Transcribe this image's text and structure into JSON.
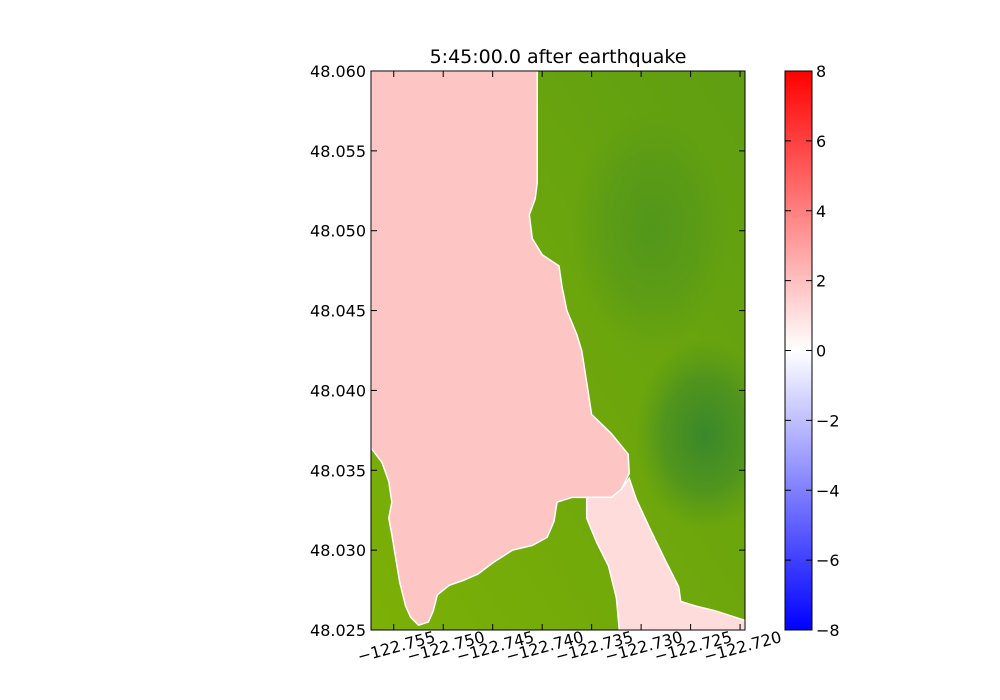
{
  "chart_data": {
    "type": "heatmap",
    "title": "5:45:00.0 after earthquake",
    "xlabel": "",
    "ylabel": "",
    "xlim": [
      -122.7573,
      -122.7195
    ],
    "ylim": [
      48.025,
      48.06
    ],
    "x_ticks": [
      -122.755,
      -122.75,
      -122.745,
      -122.74,
      -122.735,
      -122.73,
      -122.725,
      -122.72
    ],
    "x_tick_labels": [
      "−122.755",
      "−122.750",
      "−122.745",
      "−122.740",
      "−122.735",
      "−122.730",
      "−122.725",
      "−122.720"
    ],
    "y_ticks": [
      48.025,
      48.03,
      48.035,
      48.04,
      48.045,
      48.05,
      48.055,
      48.06
    ],
    "y_tick_labels": [
      "48.025",
      "48.030",
      "48.035",
      "48.040",
      "48.045",
      "48.050",
      "48.055",
      "48.060"
    ],
    "colorbar": {
      "range": [
        -8,
        8
      ],
      "ticks": [
        8,
        6,
        4,
        2,
        0,
        -2,
        -4,
        -6,
        -8
      ],
      "tick_labels": [
        "8",
        "6",
        "4",
        "2",
        "0",
        "−2",
        "−4",
        "−6",
        "−8"
      ],
      "colors": {
        "low": "#0000ff",
        "mid": "#ffffff",
        "high": "#ff0000"
      }
    },
    "water_surface_value": 2.2,
    "colors": {
      "water": "#fec5c5",
      "water_channel": "#fedcdc",
      "land_light": "#7aae06",
      "land_dark": "#3a8a2c"
    },
    "water_boundary_main": [
      [
        -122.7573,
        48.0364
      ],
      [
        -122.7562,
        48.0355
      ],
      [
        -122.7555,
        48.0343
      ],
      [
        -122.7552,
        48.033
      ],
      [
        -122.7555,
        48.032
      ],
      [
        -122.7552,
        48.031
      ],
      [
        -122.7548,
        48.0295
      ],
      [
        -122.7544,
        48.028
      ],
      [
        -122.7538,
        48.0265
      ],
      [
        -122.7533,
        48.0258
      ],
      [
        -122.7525,
        48.0253
      ],
      [
        -122.7515,
        48.0255
      ],
      [
        -122.751,
        48.0262
      ],
      [
        -122.7506,
        48.0272
      ],
      [
        -122.7494,
        48.0278
      ],
      [
        -122.748,
        48.0281
      ],
      [
        -122.7465,
        48.0285
      ],
      [
        -122.745,
        48.0292
      ],
      [
        -122.743,
        48.03
      ],
      [
        -122.741,
        48.0303
      ],
      [
        -122.7395,
        48.0308
      ],
      [
        -122.7388,
        48.0318
      ],
      [
        -122.7385,
        48.033
      ],
      [
        -122.737,
        48.0333
      ],
      [
        -122.735,
        48.0333
      ],
      [
        -122.733,
        48.0333
      ],
      [
        -122.732,
        48.0338
      ],
      [
        -122.7312,
        48.0348
      ],
      [
        -122.7313,
        48.036
      ],
      [
        -122.733,
        48.0373
      ],
      [
        -122.735,
        48.0385
      ],
      [
        -122.7355,
        48.0405
      ],
      [
        -122.736,
        48.0425
      ],
      [
        -122.7365,
        48.0435
      ],
      [
        -122.7375,
        48.045
      ],
      [
        -122.738,
        48.0465
      ],
      [
        -122.7383,
        48.0478
      ],
      [
        -122.74,
        48.0485
      ],
      [
        -122.741,
        48.0495
      ],
      [
        -122.7413,
        48.051
      ],
      [
        -122.7407,
        48.052
      ],
      [
        -122.7405,
        48.053
      ],
      [
        -122.7405,
        48.055
      ],
      [
        -122.7405,
        48.057
      ],
      [
        -122.7405,
        48.06
      ],
      [
        -122.7573,
        48.06
      ]
    ],
    "water_boundary_channel": [
      [
        -122.7355,
        48.0333
      ],
      [
        -122.733,
        48.0333
      ],
      [
        -122.732,
        48.0338
      ],
      [
        -122.7312,
        48.0345
      ],
      [
        -122.7305,
        48.0332
      ],
      [
        -122.729,
        48.0312
      ],
      [
        -122.7275,
        48.0293
      ],
      [
        -122.7262,
        48.0277
      ],
      [
        -122.726,
        48.0268
      ],
      [
        -122.7245,
        48.0265
      ],
      [
        -122.7225,
        48.0262
      ],
      [
        -122.7205,
        48.0258
      ],
      [
        -122.7195,
        48.0256
      ],
      [
        -122.7195,
        48.025
      ],
      [
        -122.7322,
        48.025
      ],
      [
        -122.7325,
        48.027
      ],
      [
        -122.7333,
        48.029
      ],
      [
        -122.7345,
        48.0305
      ],
      [
        -122.7355,
        48.032
      ]
    ]
  }
}
